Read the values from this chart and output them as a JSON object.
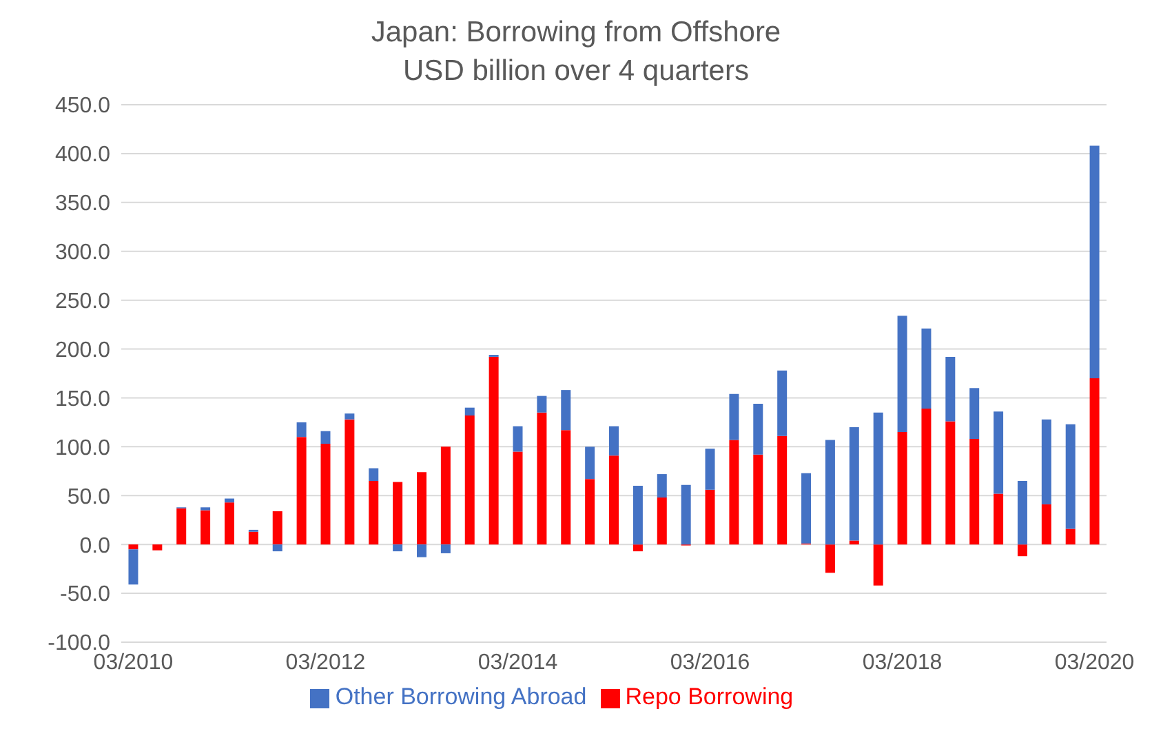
{
  "chart_data": {
    "type": "bar",
    "title": "Japan: Borrowing from Offshore",
    "subtitle": "USD billion over 4 quarters",
    "stacked": true,
    "categories": [
      "03/2010",
      null,
      null,
      null,
      null,
      null,
      null,
      null,
      "03/2012",
      null,
      null,
      null,
      null,
      null,
      null,
      null,
      "03/2014",
      null,
      null,
      null,
      null,
      null,
      null,
      null,
      "03/2016",
      null,
      null,
      null,
      null,
      null,
      null,
      null,
      "03/2018",
      null,
      null,
      null,
      null,
      null,
      null,
      null,
      "03/2020"
    ],
    "series": [
      {
        "name": "Repo Borrowing",
        "color": "#ff0000",
        "values": [
          -5,
          -6,
          37,
          35,
          43,
          13,
          34,
          110,
          103,
          128,
          65,
          64,
          74,
          100,
          132,
          192,
          95,
          135,
          117,
          67,
          91,
          -7,
          48,
          -1,
          56,
          107,
          92,
          111,
          1,
          -29,
          4,
          -42,
          115,
          139,
          126,
          108,
          52,
          -12,
          41,
          16,
          170
        ]
      },
      {
        "name": "Other Borrowing Abroad",
        "color": "#4472c4",
        "values": [
          -36,
          0,
          1,
          3,
          4,
          2,
          -7,
          15,
          13,
          6,
          13,
          -7,
          -13,
          -9,
          8,
          2,
          26,
          17,
          41,
          33,
          30,
          60,
          24,
          61,
          42,
          47,
          52,
          67,
          72,
          107,
          116,
          135,
          119,
          82,
          66,
          52,
          84,
          65,
          87,
          107,
          238
        ]
      }
    ],
    "ylim": [
      -100,
      450
    ],
    "yticks": [
      {
        "value": -100,
        "label": "-100.0"
      },
      {
        "value": -50,
        "label": "-50.0"
      },
      {
        "value": 0,
        "label": "0.0"
      },
      {
        "value": 50,
        "label": "50.0"
      },
      {
        "value": 100,
        "label": "100.0"
      },
      {
        "value": 150,
        "label": "150.0"
      },
      {
        "value": 200,
        "label": "200.0"
      },
      {
        "value": 250,
        "label": "250.0"
      },
      {
        "value": 300,
        "label": "300.0"
      },
      {
        "value": 350,
        "label": "350.0"
      },
      {
        "value": 400,
        "label": "400.0"
      },
      {
        "value": 450,
        "label": "450.0"
      }
    ],
    "grid": "y",
    "legend": "bottom"
  }
}
